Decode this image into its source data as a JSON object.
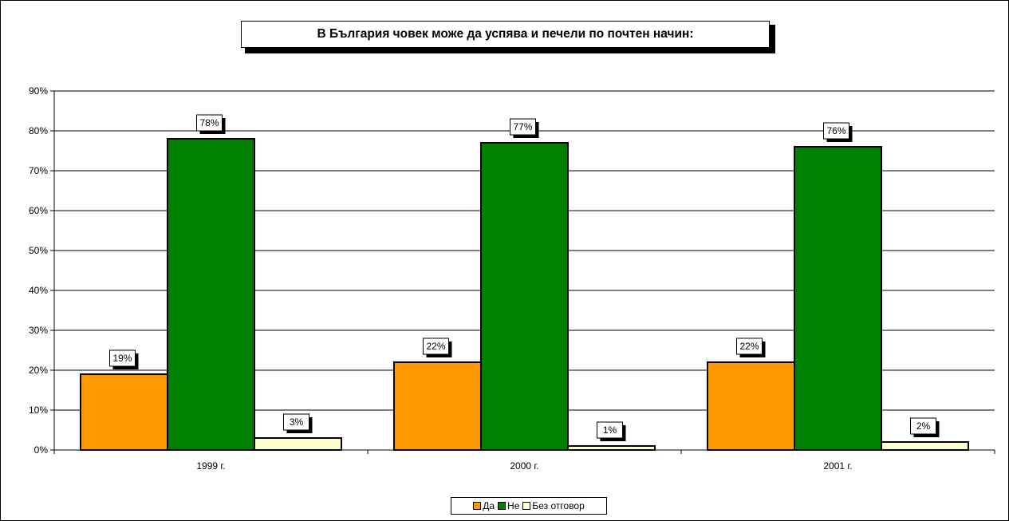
{
  "chart_data": {
    "type": "bar",
    "title": "В България човек може да успява и печели по почтен начин:",
    "categories": [
      "1999 г.",
      "2000 г.",
      "2001 г."
    ],
    "series": [
      {
        "name": "Да",
        "color": "#ff9900",
        "values": [
          19,
          22,
          22
        ],
        "labels": [
          "19%",
          "22%",
          "22%"
        ]
      },
      {
        "name": "Не",
        "color": "#008000",
        "values": [
          78,
          77,
          76
        ],
        "labels": [
          "78%",
          "77%",
          "76%"
        ]
      },
      {
        "name": "Без отговор",
        "color": "#ffffcc",
        "values": [
          3,
          1,
          2
        ],
        "labels": [
          "3%",
          "1%",
          "2%"
        ]
      }
    ],
    "y_ticks": [
      "0%",
      "10%",
      "20%",
      "30%",
      "40%",
      "50%",
      "60%",
      "70%",
      "80%",
      "90%"
    ],
    "ylim": [
      0,
      90
    ],
    "grid": true,
    "legend_position": "bottom"
  }
}
